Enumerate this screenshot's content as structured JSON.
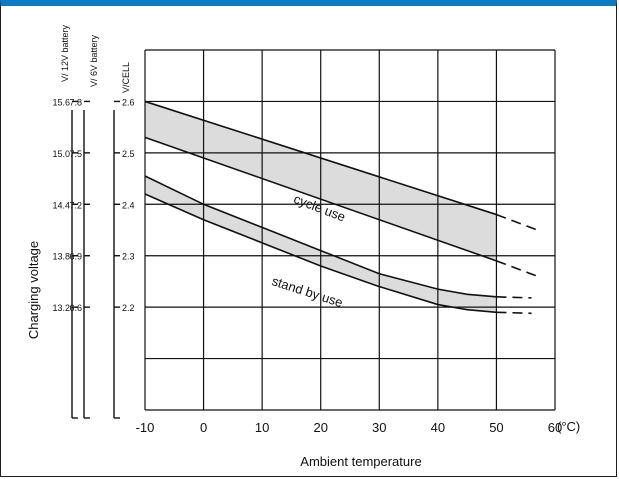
{
  "window": {
    "accent_color": "#0b7cc1",
    "background": "#ffffff"
  },
  "chart_data": {
    "type": "area",
    "title": "",
    "xlabel": "Ambient temperature",
    "ylabel": "Charging voltage",
    "x_unit": "(°C)",
    "xlim": [
      -10,
      60
    ],
    "ylim": [
      2.0,
      2.7
    ],
    "x_ticks": [
      "-10",
      "0",
      "10",
      "20",
      "30",
      "40",
      "50",
      "60"
    ],
    "x_tick_values": [
      -10,
      0,
      10,
      20,
      30,
      40,
      50,
      60
    ],
    "grid": true,
    "y_axes": [
      {
        "name": "V/CELL",
        "ticks": [
          "2.6",
          "2.5",
          "2.4",
          "2.3",
          "2.2"
        ],
        "tick_values": [
          2.6,
          2.5,
          2.4,
          2.3,
          2.2
        ]
      },
      {
        "name": "V/ 6V battery",
        "ticks": [
          "7.8",
          "7.5",
          "7.2",
          "6.9",
          "6.6"
        ],
        "tick_values": [
          7.8,
          7.5,
          7.2,
          6.9,
          6.6
        ]
      },
      {
        "name": "V/ 12V battery",
        "ticks": [
          "15.6",
          "15.0",
          "14.4",
          "13.8",
          "13.2"
        ],
        "tick_values": [
          15.6,
          15.0,
          14.4,
          13.8,
          13.2
        ]
      }
    ],
    "bands": [
      {
        "name": "cycle use",
        "upper": {
          "x": [
            -10,
            50
          ],
          "y": [
            2.6,
            2.38
          ]
        },
        "lower": {
          "x": [
            -10,
            50
          ],
          "y": [
            2.53,
            2.29
          ]
        },
        "upper_extension": {
          "x": [
            50,
            57
          ],
          "y": [
            2.38,
            2.35
          ]
        },
        "lower_extension": {
          "x": [
            50,
            57
          ],
          "y": [
            2.29,
            2.26
          ]
        },
        "fill": "#dcdcdc"
      },
      {
        "name": "stand by use",
        "upper": {
          "x": [
            -10,
            0,
            10,
            20,
            30,
            40,
            45,
            50
          ],
          "y": [
            2.455,
            2.4,
            2.355,
            2.31,
            2.265,
            2.235,
            2.225,
            2.22
          ]
        },
        "lower": {
          "x": [
            -10,
            0,
            10,
            20,
            30,
            40,
            45,
            50
          ],
          "y": [
            2.42,
            2.37,
            2.325,
            2.28,
            2.24,
            2.205,
            2.195,
            2.19
          ]
        },
        "upper_extension": {
          "x": [
            50,
            56
          ],
          "y": [
            2.22,
            2.218
          ]
        },
        "lower_extension": {
          "x": [
            50,
            56
          ],
          "y": [
            2.19,
            2.188
          ]
        },
        "fill": "#dcdcdc"
      }
    ]
  }
}
